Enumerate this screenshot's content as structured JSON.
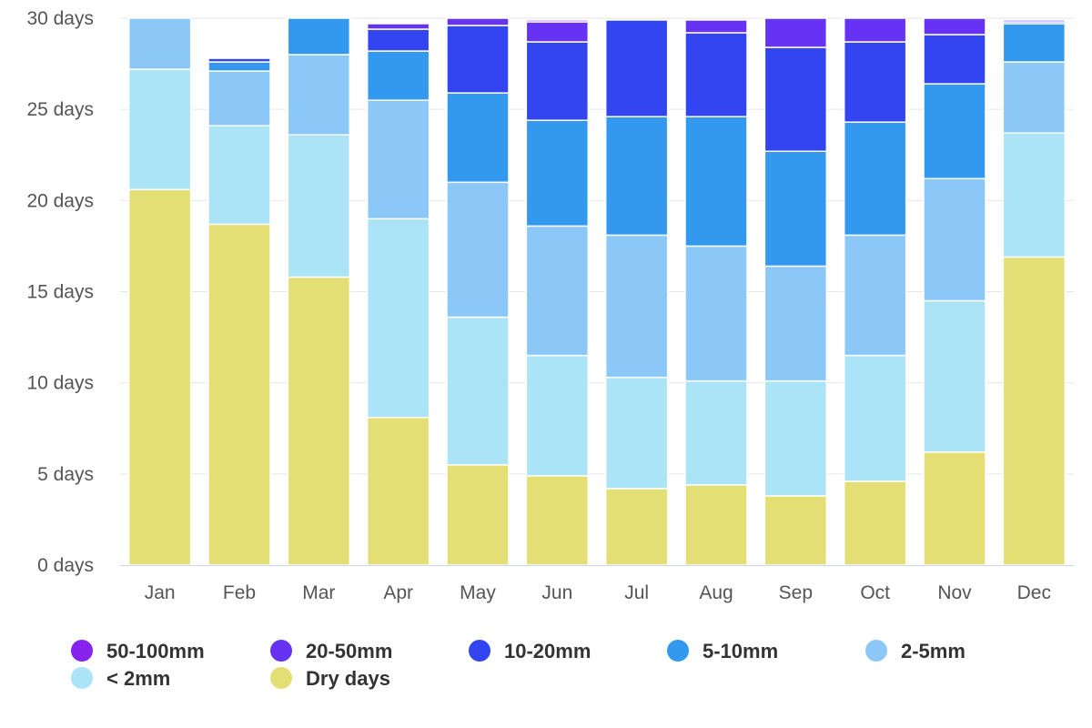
{
  "chart_data": {
    "type": "bar",
    "stacked": true,
    "title": "",
    "xlabel": "",
    "ylabel": "",
    "ylim": [
      0,
      30
    ],
    "yticks": [
      "0 days",
      "5 days",
      "10 days",
      "15 days",
      "20 days",
      "25 days",
      "30 days"
    ],
    "ytick_values": [
      0,
      5,
      10,
      15,
      20,
      25,
      30
    ],
    "grid": true,
    "legend_position": "bottom",
    "categories": [
      "Jan",
      "Feb",
      "Mar",
      "Apr",
      "May",
      "Jun",
      "Jul",
      "Aug",
      "Sep",
      "Oct",
      "Nov",
      "Dec"
    ],
    "series": [
      {
        "name": "Dry days",
        "color": "#e4df75",
        "values": [
          20.6,
          18.7,
          15.8,
          8.1,
          5.5,
          4.9,
          4.2,
          4.4,
          3.8,
          4.6,
          6.2,
          16.9
        ]
      },
      {
        "name": "< 2mm",
        "color": "#abe3f7",
        "values": [
          6.6,
          5.4,
          7.8,
          10.9,
          8.1,
          6.6,
          6.1,
          5.7,
          6.3,
          6.9,
          8.3,
          6.8
        ]
      },
      {
        "name": "2-5mm",
        "color": "#8cc8f7",
        "values": [
          2.8,
          3.0,
          4.4,
          6.5,
          7.4,
          7.1,
          7.8,
          7.4,
          6.3,
          6.6,
          6.7,
          3.9
        ]
      },
      {
        "name": "5-10mm",
        "color": "#3399ee",
        "values": [
          0.0,
          0.5,
          2.0,
          2.7,
          4.9,
          5.8,
          6.5,
          7.1,
          6.3,
          6.2,
          5.2,
          2.1
        ]
      },
      {
        "name": "10-20mm",
        "color": "#3344f1",
        "values": [
          0.0,
          0.2,
          0.0,
          1.2,
          3.7,
          4.3,
          5.3,
          4.6,
          5.7,
          4.4,
          2.7,
          0.1
        ]
      },
      {
        "name": "20-50mm",
        "color": "#6633f5",
        "values": [
          0.0,
          0.0,
          0.0,
          0.3,
          0.4,
          1.1,
          0.0,
          0.7,
          1.6,
          1.3,
          0.9,
          0.1
        ]
      },
      {
        "name": "50-100mm",
        "color": "#8822ee",
        "values": [
          0.0,
          0.0,
          0.0,
          0.0,
          0.0,
          0.1,
          0.0,
          0.0,
          0.0,
          0.0,
          0.0,
          0.0
        ]
      }
    ],
    "legend_order": [
      "50-100mm",
      "20-50mm",
      "10-20mm",
      "5-10mm",
      "2-5mm",
      "< 2mm",
      "Dry days"
    ]
  }
}
